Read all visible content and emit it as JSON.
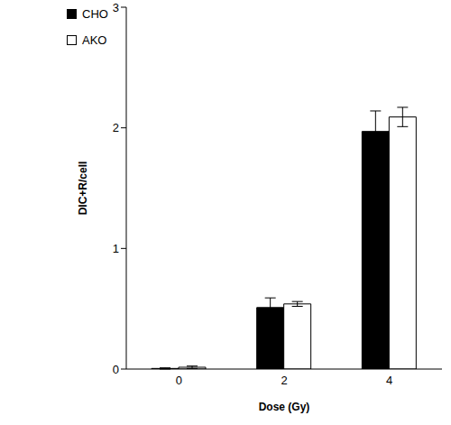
{
  "chart_data": {
    "type": "bar",
    "x_label": "Dose (Gy)",
    "y_label": "DIC+R/cell",
    "categories": [
      "0",
      "2",
      "4"
    ],
    "series": [
      {
        "name": "CHO",
        "color": "#000000",
        "values": [
          0.005,
          0.51,
          1.97
        ],
        "errors": [
          0.005,
          0.08,
          0.17
        ]
      },
      {
        "name": "AKO",
        "color": "#ffffff",
        "values": [
          0.015,
          0.54,
          2.09
        ],
        "errors": [
          0.01,
          0.02,
          0.08
        ]
      }
    ],
    "ylim": [
      0,
      3
    ],
    "yticks": [
      0,
      1,
      2,
      3
    ],
    "grid": false,
    "legend": "upper left"
  }
}
